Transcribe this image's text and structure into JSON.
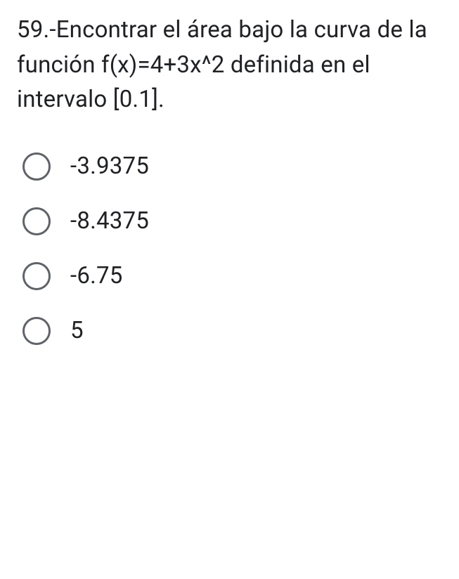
{
  "question": {
    "text": "59.-Encontrar el área bajo la curva de la función f(x)=4+3x^2 definida en el intervalo [0.1].",
    "fontsize": 33,
    "color": "#202124"
  },
  "options": [
    {
      "label": "-3.9375",
      "selected": false
    },
    {
      "label": "-8.4375",
      "selected": false
    },
    {
      "label": "-6.75",
      "selected": false
    },
    {
      "label": "5",
      "selected": false
    }
  ],
  "styling": {
    "background_color": "#ffffff",
    "text_color": "#202124",
    "radio_border_color": "#5f6368",
    "radio_size": 40,
    "radio_border_width": 3,
    "option_fontsize": 33,
    "option_gap": 38
  }
}
